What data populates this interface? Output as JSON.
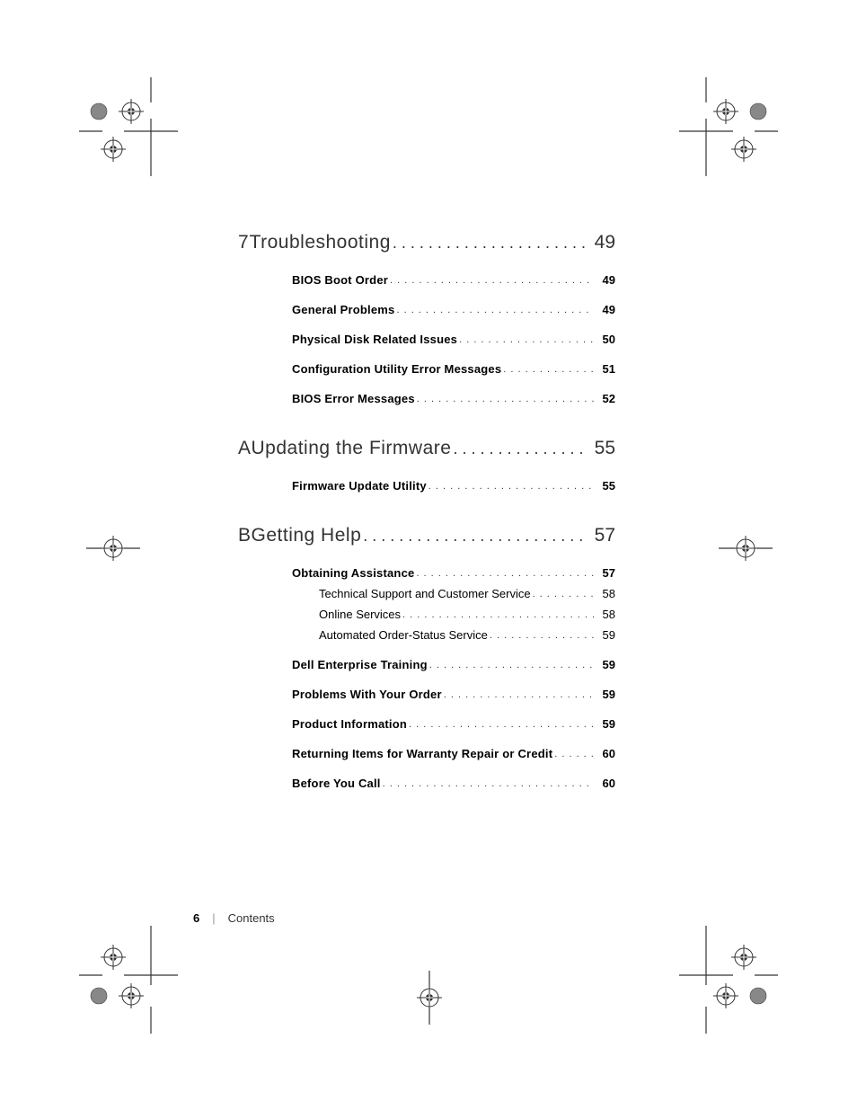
{
  "dot_spacer": ". . . . . . . . . . . . . . . . . . . . . . . . . . . . . . . . . . . . . . . . . . . . . . . . . . . . . . . . . .",
  "footer": {
    "page_number": "6",
    "separator": "|",
    "section": "Contents"
  },
  "chapters": [
    {
      "id": "7",
      "title": "Troubleshooting",
      "page": "49",
      "entries": [
        {
          "title": "BIOS Boot Order",
          "page": "49",
          "sub": []
        },
        {
          "title": "General Problems",
          "page": "49",
          "sub": []
        },
        {
          "title": "Physical Disk Related Issues",
          "page": "50",
          "sub": []
        },
        {
          "title": "Configuration Utility Error Messages",
          "page": "51",
          "sub": []
        },
        {
          "title": "BIOS Error Messages",
          "page": "52",
          "sub": []
        }
      ]
    },
    {
      "id": "A",
      "title": "Updating the Firmware",
      "page": "55",
      "entries": [
        {
          "title": "Firmware Update Utility",
          "page": "55",
          "sub": []
        }
      ]
    },
    {
      "id": "B",
      "title": "Getting Help",
      "page": "57",
      "entries": [
        {
          "title": "Obtaining Assistance",
          "page": "57",
          "sub": [
            {
              "title": "Technical Support and Customer Service",
              "page": "58"
            },
            {
              "title": "Online Services",
              "page": "58"
            },
            {
              "title": "Automated Order-Status Service",
              "page": "59"
            }
          ]
        },
        {
          "title": "Dell Enterprise Training",
          "page": "59",
          "sub": []
        },
        {
          "title": "Problems With Your Order",
          "page": "59",
          "sub": []
        },
        {
          "title": "Product Information",
          "page": "59",
          "sub": []
        },
        {
          "title": "Returning Items for Warranty Repair or Credit",
          "page": "60",
          "sub": []
        },
        {
          "title": "Before You Call",
          "page": "60",
          "sub": []
        }
      ]
    }
  ],
  "registration_marks": {
    "stroke": "#333333",
    "fill": "#ffffff",
    "inner_fill": "#777777"
  }
}
